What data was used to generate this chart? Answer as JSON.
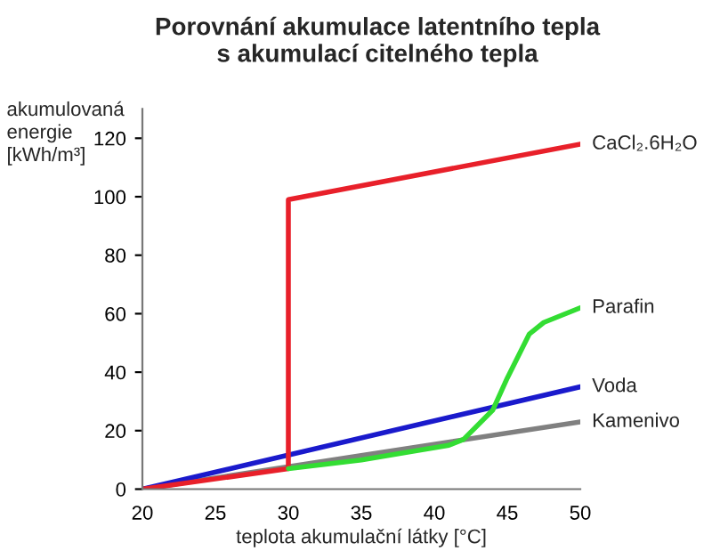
{
  "chart_data": {
    "type": "line",
    "title": "Porovnání akumulace latentního tepla\ns akumulací citelného tepla",
    "xlabel": "teplota akumulační látky [°C]",
    "ylabel": "akumulovaná\nenergie\n[kWh/m³]",
    "series": [
      {
        "name": "CaCl₂.6H₂O",
        "color": "#e8202a",
        "x": [
          20,
          30,
          30,
          50
        ],
        "values": [
          0,
          7,
          99,
          118
        ]
      },
      {
        "name": "Parafin",
        "color": "#33dd33",
        "x": [
          30,
          35,
          41,
          42,
          43,
          44,
          45,
          46.5,
          47.5,
          50
        ],
        "values": [
          7,
          10,
          15,
          17,
          22,
          27,
          38,
          53,
          57,
          62
        ]
      },
      {
        "name": "Voda",
        "color": "#1a1acc",
        "x": [
          20,
          50
        ],
        "values": [
          0,
          35
        ]
      },
      {
        "name": "Kamenivo",
        "color": "#808080",
        "x": [
          20,
          50
        ],
        "values": [
          0,
          23
        ]
      }
    ],
    "xlim": [
      20,
      50
    ],
    "ylim": [
      0,
      130
    ],
    "xticks": [
      20,
      25,
      30,
      35,
      40,
      45,
      50
    ],
    "yticks": [
      0,
      20,
      40,
      60,
      80,
      100,
      120
    ],
    "grid": false,
    "legend": false,
    "marker": "none",
    "line_style": "solid"
  }
}
